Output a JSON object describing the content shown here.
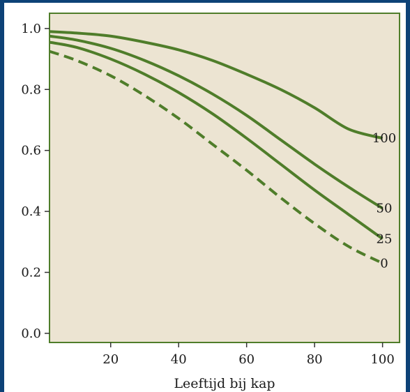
{
  "colors": {
    "slide_background": "#0d4277",
    "plot_background": "#ece4d2",
    "plot_border": "#4f7d2a",
    "curve": "#4f7d2a"
  },
  "chart_data": {
    "type": "line",
    "title": "",
    "xlabel": "Leeftijd bij kap",
    "ylabel": "",
    "xlim": [
      2,
      105
    ],
    "ylim": [
      -0.03,
      1.05
    ],
    "xticks": [
      20,
      40,
      60,
      80,
      100
    ],
    "yticks": [
      0.0,
      0.2,
      0.4,
      0.6,
      0.8,
      1.0
    ],
    "xtick_labels": [
      "20",
      "40",
      "60",
      "80",
      "100"
    ],
    "ytick_labels": [
      "0.0",
      "0.2",
      "0.4",
      "0.6",
      "0.8",
      "1.0"
    ],
    "grid": false,
    "series": [
      {
        "name": "100",
        "line_style": "solid",
        "x": [
          2,
          10,
          20,
          30,
          40,
          50,
          60,
          70,
          80,
          90,
          100
        ],
        "y": [
          0.99,
          0.985,
          0.975,
          0.955,
          0.93,
          0.895,
          0.85,
          0.8,
          0.74,
          0.67,
          0.64
        ]
      },
      {
        "name": "50",
        "line_style": "solid",
        "x": [
          2,
          10,
          20,
          30,
          40,
          50,
          60,
          70,
          80,
          90,
          100
        ],
        "y": [
          0.975,
          0.962,
          0.935,
          0.895,
          0.845,
          0.785,
          0.715,
          0.635,
          0.555,
          0.48,
          0.41
        ]
      },
      {
        "name": "25",
        "line_style": "solid",
        "x": [
          2,
          10,
          20,
          30,
          40,
          50,
          60,
          70,
          80,
          90,
          100
        ],
        "y": [
          0.955,
          0.938,
          0.9,
          0.85,
          0.79,
          0.72,
          0.64,
          0.555,
          0.47,
          0.39,
          0.31
        ]
      },
      {
        "name": "0",
        "line_style": "dashed",
        "x": [
          2,
          10,
          20,
          30,
          40,
          50,
          60,
          70,
          80,
          90,
          100
        ],
        "y": [
          0.925,
          0.895,
          0.845,
          0.78,
          0.705,
          0.62,
          0.535,
          0.445,
          0.36,
          0.285,
          0.23
        ]
      }
    ]
  }
}
